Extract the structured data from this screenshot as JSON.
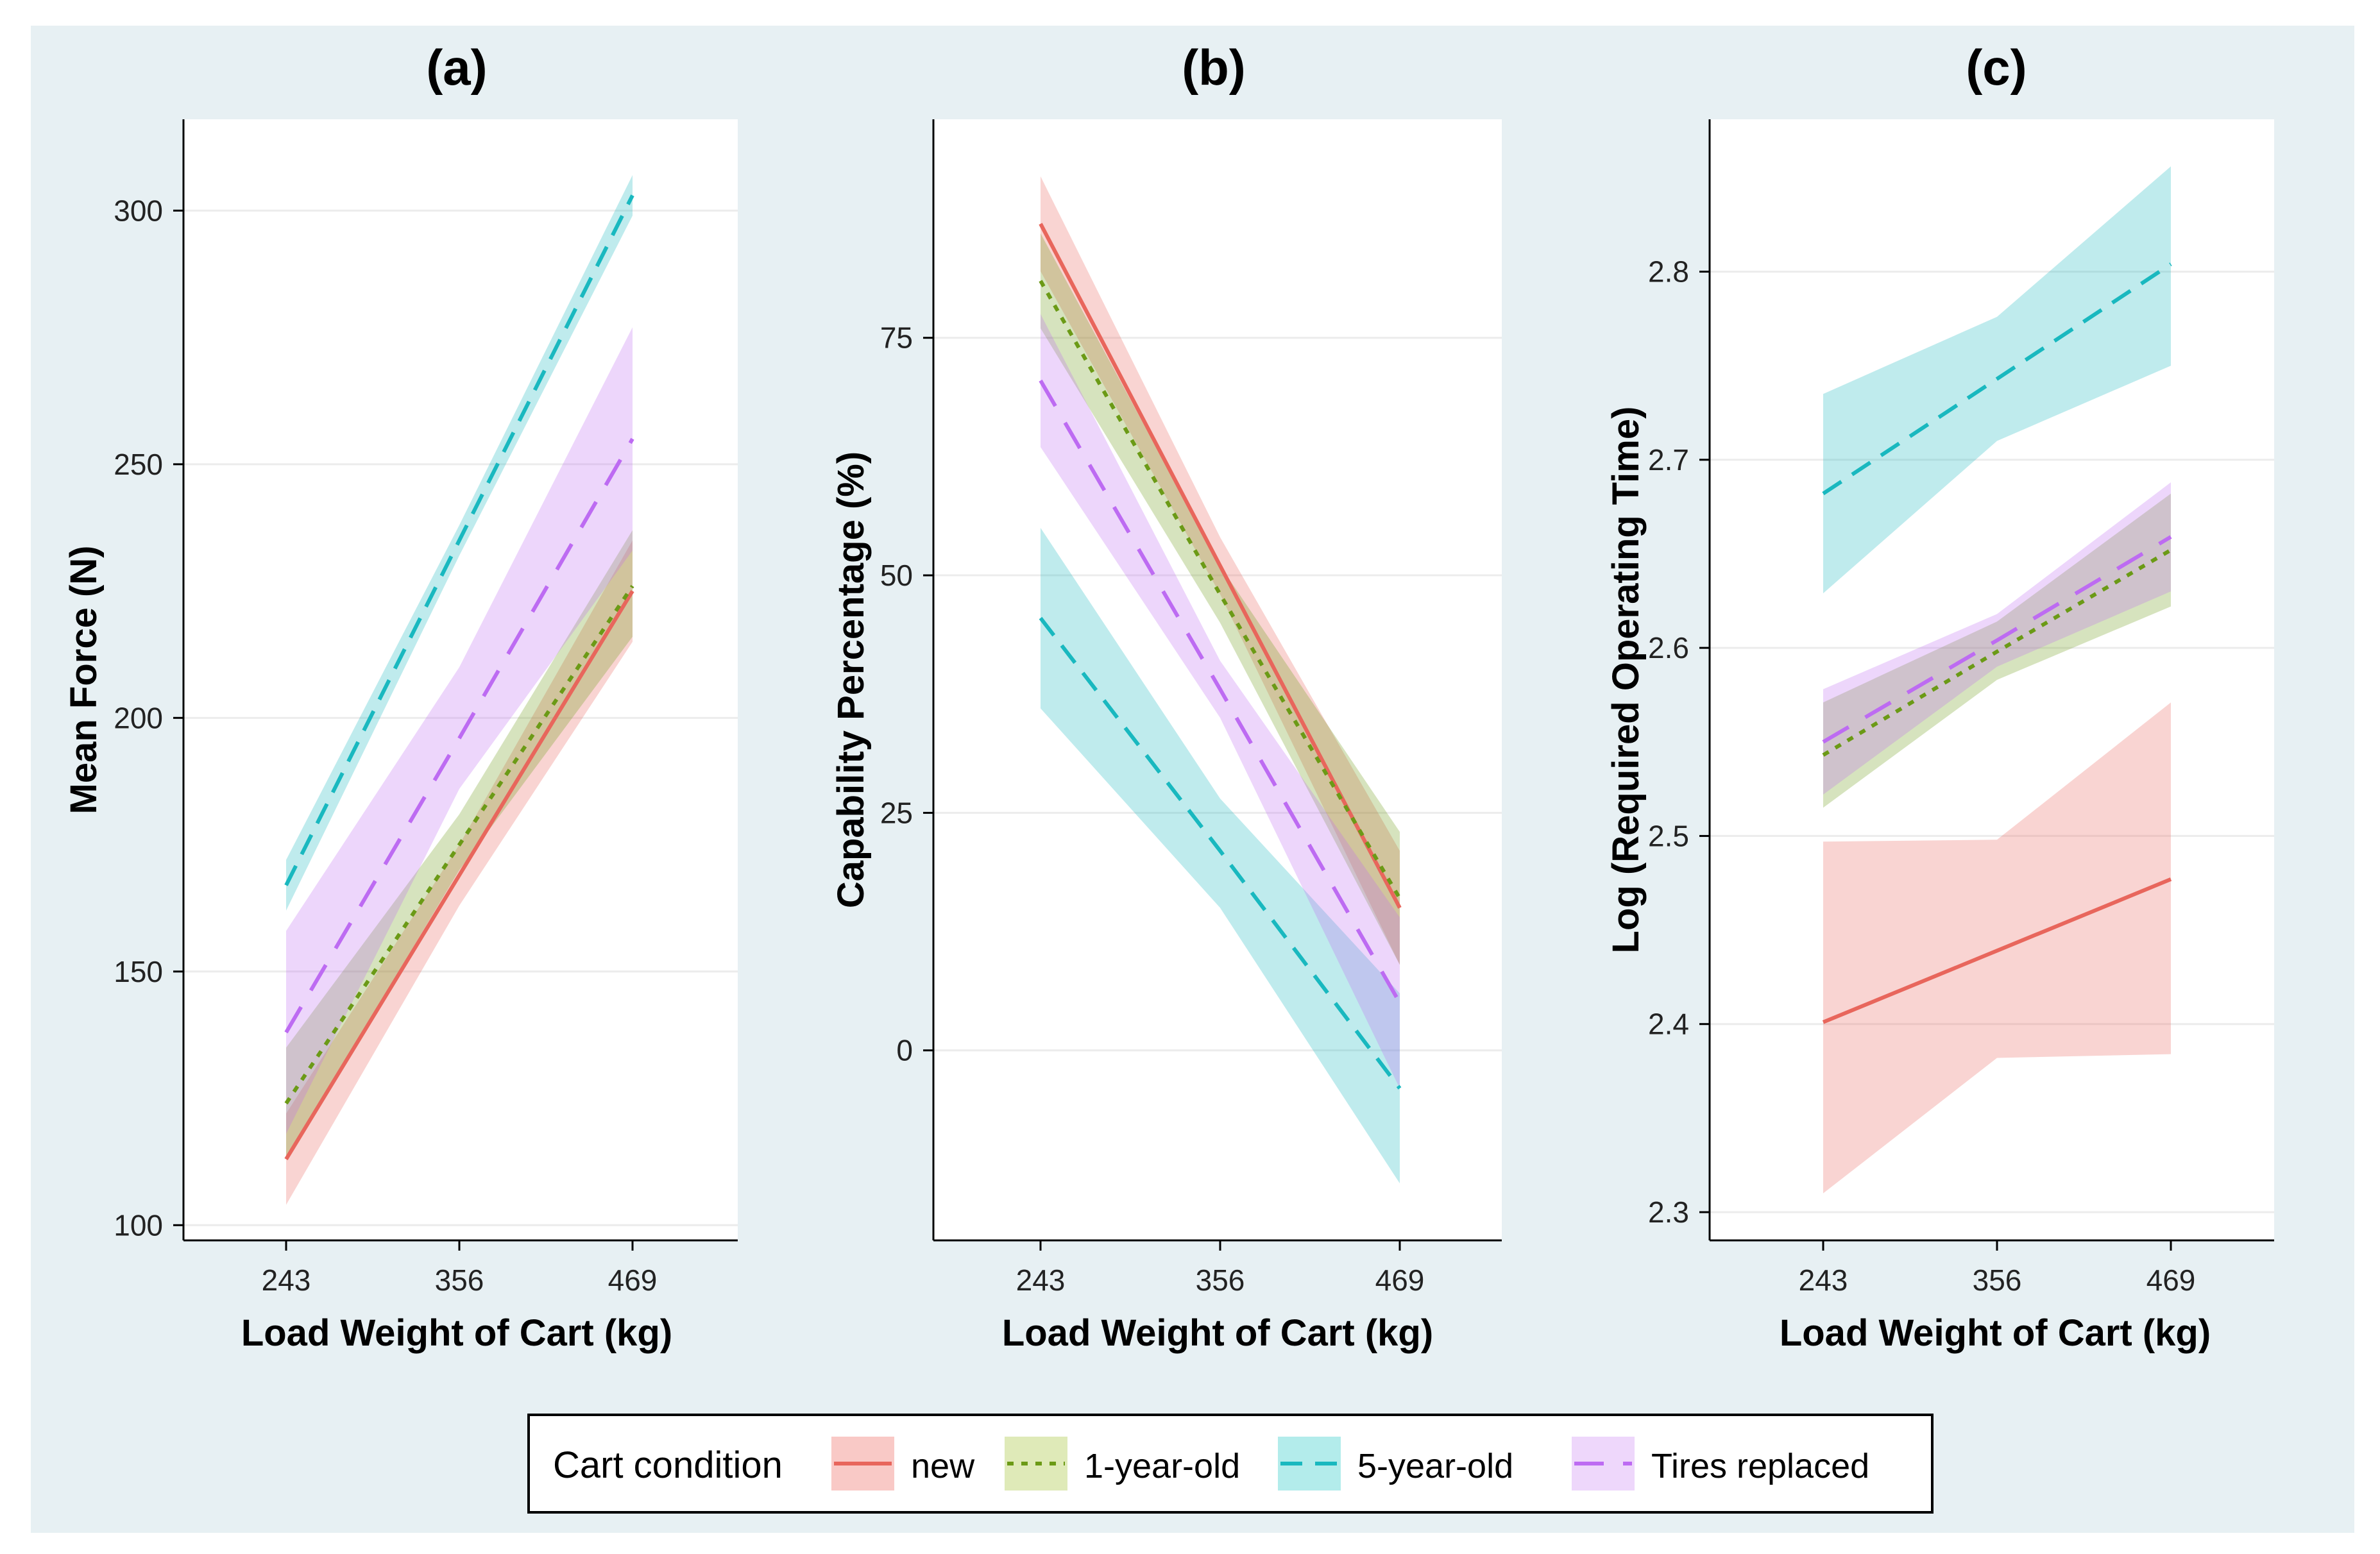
{
  "legend": {
    "title": "Cart condition",
    "items": [
      {
        "label": "new",
        "color": "#e8665c",
        "band": "#f9c9c6",
        "dash": "solid"
      },
      {
        "label": "1-year-old",
        "color": "#6b9a16",
        "band": "#dfeab8",
        "dash": "dotted"
      },
      {
        "label": "5-year-old",
        "color": "#19b8bf",
        "band": "#b3eceb",
        "dash": "dashed"
      },
      {
        "label": "Tires replaced",
        "color": "#bd6bf2",
        "band": "#eed7fb",
        "dash": "longdash"
      }
    ]
  },
  "chart_data": [
    {
      "type": "line",
      "panel_label": "(a)",
      "xlabel": "Load Weight of Cart (kg)",
      "ylabel": "Mean Force (N)",
      "x": [
        243,
        356,
        469
      ],
      "xticks": [
        "243",
        "356",
        "469"
      ],
      "ylim": [
        97,
        318
      ],
      "yticks": [
        100,
        150,
        200,
        250,
        300
      ],
      "grid": true,
      "series": [
        {
          "name": "new",
          "values": [
            113,
            169,
            225
          ],
          "lower": [
            104,
            163,
            215
          ],
          "upper": [
            122,
            175,
            235
          ]
        },
        {
          "name": "1-year-old",
          "values": [
            124,
            175,
            226
          ],
          "lower": [
            113,
            170,
            216
          ],
          "upper": [
            135,
            181,
            237
          ]
        },
        {
          "name": "5-year-old",
          "values": [
            167,
            235,
            303
          ],
          "lower": [
            162,
            232,
            299
          ],
          "upper": [
            172,
            238,
            307
          ]
        },
        {
          "name": "Tires replaced",
          "values": [
            138,
            196,
            255
          ],
          "lower": [
            118,
            186,
            233
          ],
          "upper": [
            158,
            210,
            277
          ]
        }
      ]
    },
    {
      "type": "line",
      "panel_label": "(b)",
      "xlabel": "Load Weight of Cart (kg)",
      "ylabel": "Capability Percentage   (%)",
      "x": [
        243,
        356,
        469
      ],
      "xticks": [
        "243",
        "356",
        "469"
      ],
      "ylim": [
        -20,
        98
      ],
      "yticks": [
        0,
        25,
        50,
        75
      ],
      "grid": true,
      "series": [
        {
          "name": "new",
          "values": [
            87,
            51,
            15
          ],
          "lower": [
            82,
            48,
            9
          ],
          "upper": [
            92,
            54,
            21
          ]
        },
        {
          "name": "1-year-old",
          "values": [
            81,
            48,
            16
          ],
          "lower": [
            76,
            45,
            9
          ],
          "upper": [
            86,
            51,
            23
          ]
        },
        {
          "name": "5-year-old",
          "values": [
            45.5,
            21,
            -4
          ],
          "lower": [
            36,
            15,
            -14
          ],
          "upper": [
            55,
            26.5,
            6
          ]
        },
        {
          "name": "Tires replaced",
          "values": [
            70.5,
            38,
            5
          ],
          "lower": [
            63.5,
            35,
            -4
          ],
          "upper": [
            77.5,
            41,
            14
          ]
        }
      ]
    },
    {
      "type": "line",
      "panel_label": "(c)",
      "xlabel": "Load Weight of Cart (kg)",
      "ylabel": "Log (Required Operating Time)",
      "x": [
        243,
        356,
        469
      ],
      "xticks": [
        "243",
        "356",
        "469"
      ],
      "ylim": [
        2.285,
        2.881
      ],
      "yticks": [
        2.3,
        2.4,
        2.5,
        2.6,
        2.7,
        2.8
      ],
      "grid": true,
      "series": [
        {
          "name": "new",
          "values": [
            2.401,
            2.439,
            2.477
          ],
          "lower": [
            2.31,
            2.382,
            2.384
          ],
          "upper": [
            2.497,
            2.498,
            2.571
          ]
        },
        {
          "name": "1-year-old",
          "values": [
            2.543,
            2.598,
            2.652
          ],
          "lower": [
            2.515,
            2.583,
            2.622
          ],
          "upper": [
            2.571,
            2.614,
            2.682
          ]
        },
        {
          "name": "5-year-old",
          "values": [
            2.682,
            2.743,
            2.804
          ],
          "lower": [
            2.629,
            2.71,
            2.75
          ],
          "upper": [
            2.735,
            2.776,
            2.856
          ]
        },
        {
          "name": "Tires replaced",
          "values": [
            2.55,
            2.604,
            2.659
          ],
          "lower": [
            2.522,
            2.59,
            2.63
          ],
          "upper": [
            2.578,
            2.618,
            2.688
          ]
        }
      ]
    }
  ]
}
